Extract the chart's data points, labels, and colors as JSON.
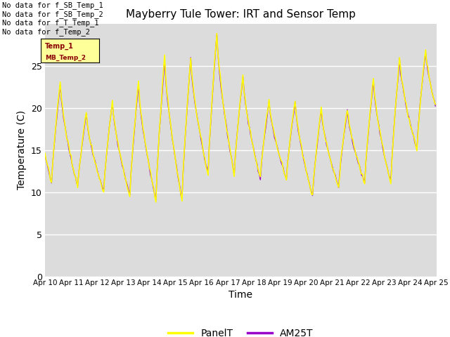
{
  "title": "Mayberry Tule Tower: IRT and Sensor Temp",
  "xlabel": "Time",
  "ylabel": "Temperature (C)",
  "ylim": [
    0,
    30
  ],
  "background_color": "#ffffff",
  "plot_bg_color": "#dcdcdc",
  "panel_color": "#ffff00",
  "am25_color": "#9900cc",
  "legend_labels": [
    "PanelT",
    "AM25T"
  ],
  "no_data_lines": [
    "No data for f_SB_Temp_1",
    "No data for f_SB_Temp_2",
    "No data for f_T_Temp_1",
    "No data for f_Temp_2"
  ],
  "xtick_labels": [
    "Apr 10",
    "Apr 11",
    "Apr 12",
    "Apr 13",
    "Apr 14",
    "Apr 15",
    "Apr 16",
    "Apr 17",
    "Apr 18",
    "Apr 19",
    "Apr 20",
    "Apr 21",
    "Apr 22",
    "Apr 23",
    "Apr 24",
    "Apr 25"
  ],
  "ytick_values": [
    0,
    5,
    10,
    15,
    20,
    25
  ]
}
